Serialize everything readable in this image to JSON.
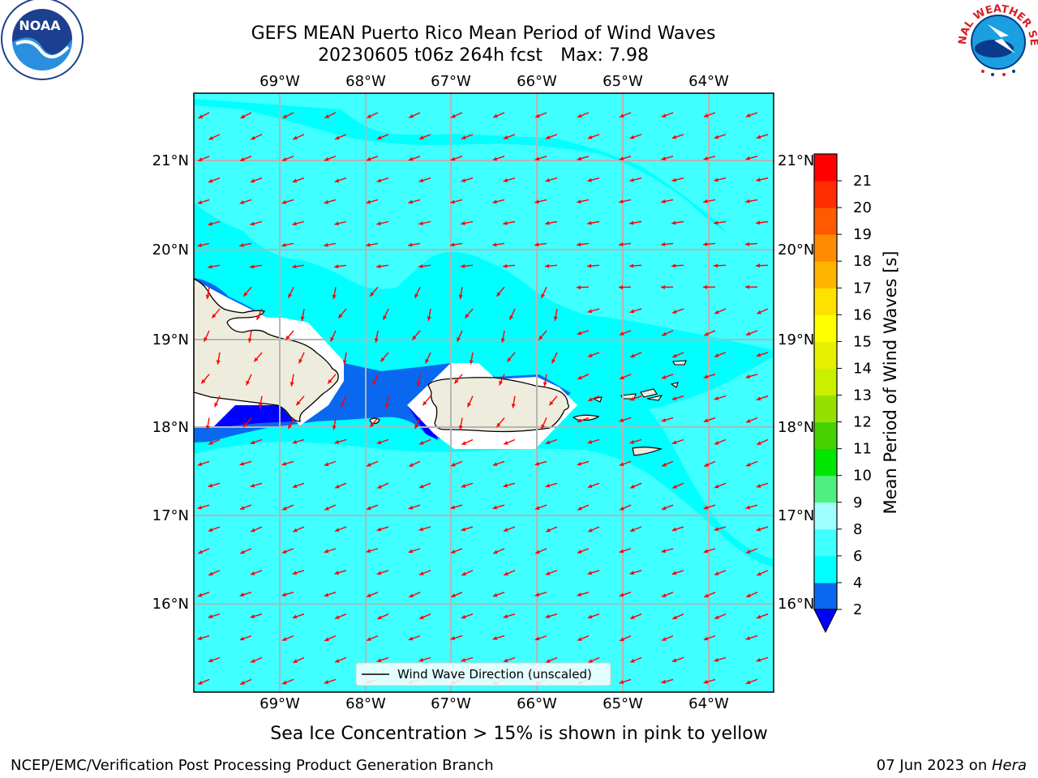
{
  "title": {
    "line1": "GEFS MEAN Puerto Rico Mean Period of Wind Waves",
    "line2": "20230605 t06z 264h fcst",
    "max_label": "Max: 7.98"
  },
  "map": {
    "lon_labels": [
      "69°W",
      "68°W",
      "67°W",
      "66°W",
      "65°W",
      "64°W"
    ],
    "lat_labels": [
      "21°N",
      "20°N",
      "19°N",
      "18°N",
      "17°N",
      "16°N"
    ],
    "legend": "Wind Wave Direction (unscaled)",
    "arrow_color": "#ff0000",
    "coast_color": "#000000",
    "land_color": "#eeecdc"
  },
  "colorbar": {
    "label": "Mean Period of Wind Waves [s]",
    "ticks": [
      "2",
      "4",
      "6",
      "8",
      "9",
      "10",
      "11",
      "12",
      "13",
      "14",
      "15",
      "16",
      "17",
      "18",
      "19",
      "20",
      "21"
    ],
    "colors": [
      "#0a68f0",
      "#00ffff",
      "#40ffff",
      "#a0ffff",
      "#50f080",
      "#00e600",
      "#46d200",
      "#96e000",
      "#c8f000",
      "#e6f000",
      "#ffff00",
      "#ffe100",
      "#ffb400",
      "#ff8c00",
      "#ff5a00",
      "#ff2d00",
      "#ff0000"
    ],
    "under_color": "#0000ff"
  },
  "notes": {
    "sea_ice": "Sea Ice Concentration > 15% is shown in pink to yellow",
    "branch": "NCEP/EMC/Verification Post Processing Product Generation Branch",
    "date": "07 Jun 2023 on ",
    "machine": "Hera"
  },
  "logos": {
    "noaa_text": "NOAA",
    "nws_text": "NATIONAL WEATHER SERVICE"
  }
}
